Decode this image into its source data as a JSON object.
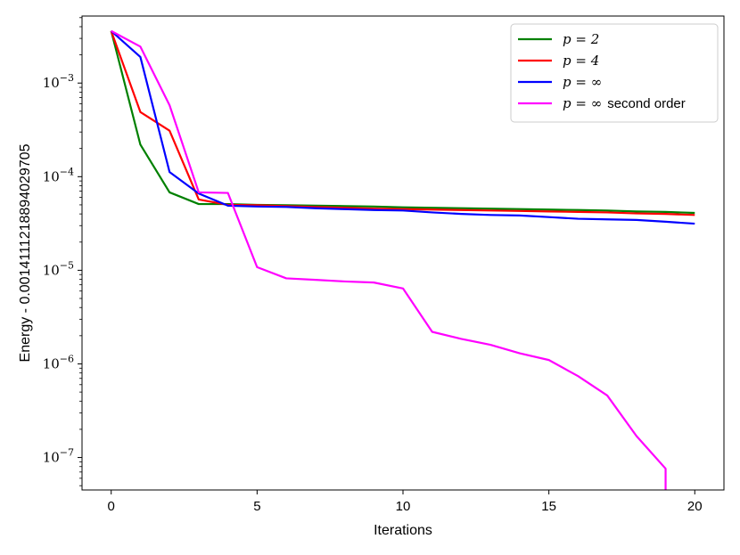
{
  "chart_data": {
    "type": "line",
    "xlabel": "Iterations",
    "ylabel": "Energy - 0.0014111218894029705",
    "xlim": [
      -1,
      21
    ],
    "ylim": [
      4.5e-08,
      0.0052
    ],
    "yscale": "log",
    "grid": false,
    "legend_position": "top-right",
    "x_ticks": [
      {
        "value": 0,
        "label": "0"
      },
      {
        "value": 5,
        "label": "5"
      },
      {
        "value": 10,
        "label": "10"
      },
      {
        "value": 15,
        "label": "15"
      },
      {
        "value": 20,
        "label": "20"
      }
    ],
    "y_ticks": [
      {
        "value": 1e-07,
        "base": "10",
        "exp": "−7"
      },
      {
        "value": 1e-06,
        "base": "10",
        "exp": "−6"
      },
      {
        "value": 1e-05,
        "base": "10",
        "exp": "−5"
      },
      {
        "value": 0.0001,
        "base": "10",
        "exp": "−4"
      },
      {
        "value": 0.001,
        "base": "10",
        "exp": "−3"
      }
    ],
    "series": [
      {
        "name": "p = 2",
        "legend_suffix": "",
        "color": "#008000",
        "x": [
          0,
          1,
          2,
          3,
          4,
          5,
          6,
          7,
          8,
          9,
          10,
          11,
          12,
          13,
          14,
          15,
          16,
          17,
          18,
          19,
          20
        ],
        "y": [
          0.0036,
          0.00022,
          6.8e-05,
          5.1e-05,
          5.1e-05,
          5e-05,
          4.95e-05,
          4.9e-05,
          4.85e-05,
          4.8e-05,
          4.7e-05,
          4.65e-05,
          4.6e-05,
          4.55e-05,
          4.5e-05,
          4.45e-05,
          4.4e-05,
          4.35e-05,
          4.25e-05,
          4.2e-05,
          4.1e-05
        ]
      },
      {
        "name": "p = 4",
        "legend_suffix": "",
        "color": "#ff0000",
        "x": [
          0,
          1,
          2,
          3,
          4,
          5,
          6,
          7,
          8,
          9,
          10,
          11,
          12,
          13,
          14,
          15,
          16,
          17,
          18,
          19,
          20
        ],
        "y": [
          0.0036,
          0.00049,
          0.00031,
          5.7e-05,
          5e-05,
          4.95e-05,
          4.85e-05,
          4.75e-05,
          4.65e-05,
          4.55e-05,
          4.5e-05,
          4.45e-05,
          4.4e-05,
          4.35e-05,
          4.3e-05,
          4.25e-05,
          4.2e-05,
          4.15e-05,
          4.05e-05,
          4e-05,
          3.9e-05
        ]
      },
      {
        "name": "p = ∞",
        "legend_suffix": "",
        "color": "#0000ff",
        "x": [
          0,
          1,
          2,
          3,
          4,
          5,
          6,
          7,
          8,
          9,
          10,
          11,
          12,
          13,
          14,
          15,
          16,
          17,
          18,
          19,
          20
        ],
        "y": [
          0.0036,
          0.0019,
          0.000112,
          6.6e-05,
          4.9e-05,
          4.8e-05,
          4.75e-05,
          4.6e-05,
          4.5e-05,
          4.4e-05,
          4.35e-05,
          4.15e-05,
          4e-05,
          3.9e-05,
          3.85e-05,
          3.7e-05,
          3.55e-05,
          3.5e-05,
          3.45e-05,
          3.3e-05,
          3.15e-05
        ]
      },
      {
        "name": "p = ∞",
        "legend_suffix": "second order",
        "color": "#ff00ff",
        "x": [
          0,
          1,
          2,
          3,
          4,
          5,
          6,
          7,
          8,
          9,
          10,
          11,
          12,
          13,
          14,
          15,
          16,
          17,
          18,
          19,
          19
        ],
        "y": [
          0.0036,
          0.00245,
          0.00058,
          6.8e-05,
          6.7e-05,
          1.08e-05,
          8.2e-06,
          7.9e-06,
          7.6e-06,
          7.4e-06,
          6.4e-06,
          2.2e-06,
          1.85e-06,
          1.6e-06,
          1.3e-06,
          1.1e-06,
          7.4e-07,
          4.6e-07,
          1.7e-07,
          7.6e-08,
          4.5e-08
        ]
      }
    ]
  }
}
